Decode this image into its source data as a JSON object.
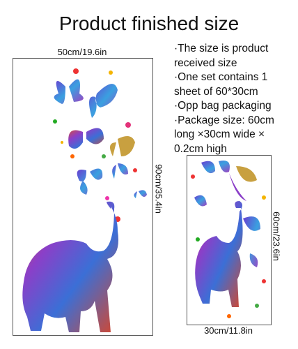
{
  "header": {
    "title": "Product finished size"
  },
  "large": {
    "width_label": "50cm/19.6in",
    "height_label": "90cm/35.4in"
  },
  "small": {
    "width_label": "30cm/11.8in",
    "height_label": "60cm/23.6in"
  },
  "notes": [
    [
      "·The size is product",
      "received size"
    ],
    [
      "·One set contains 1",
      "sheet of 60*30cm"
    ],
    [
      "·Opp bag packaging"
    ],
    [
      "·Package size: 60cm",
      "long ×30cm wide ×",
      "0.2cm high"
    ]
  ]
}
